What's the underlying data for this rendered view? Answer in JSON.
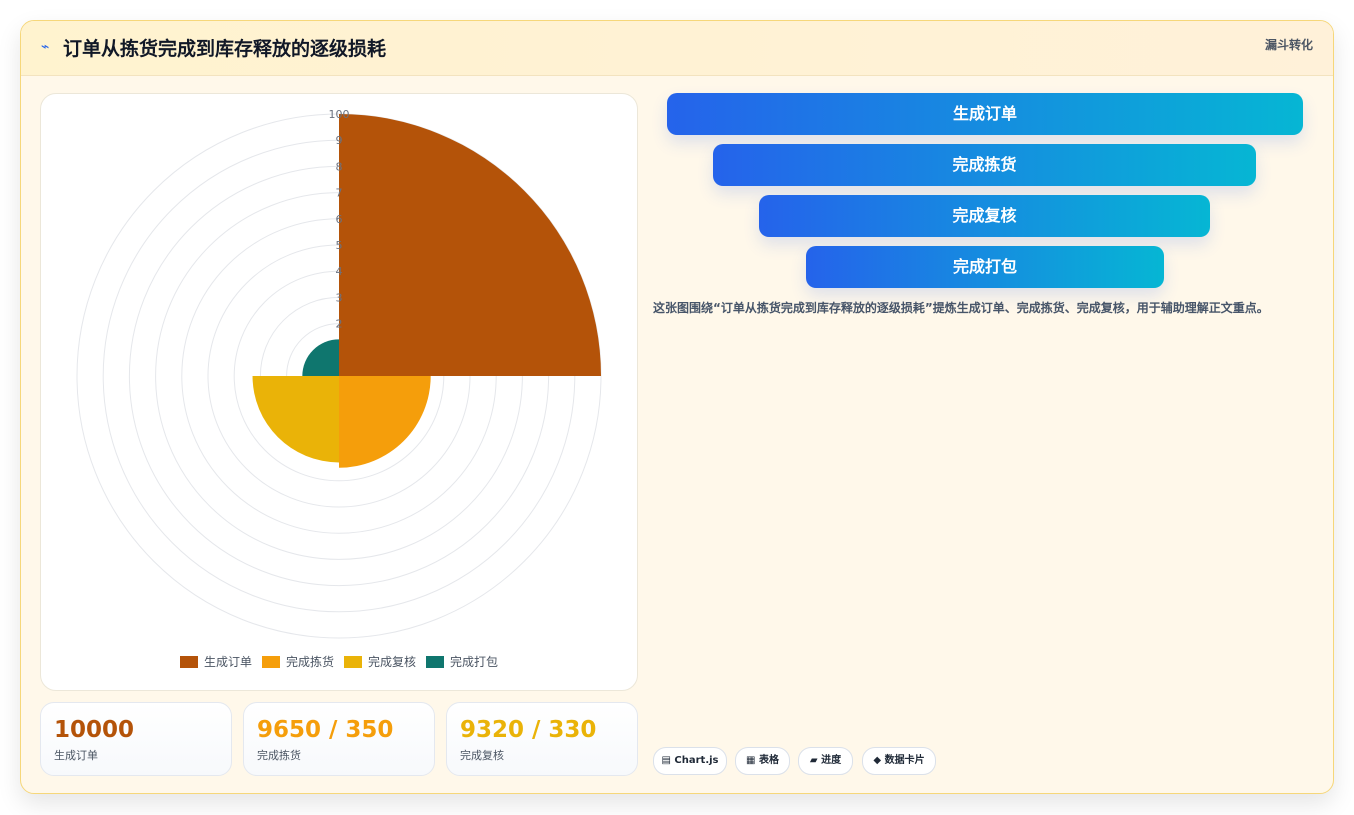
{
  "header": {
    "icon": "⌁",
    "title": "订单从拣货完成到库存释放的逐级损耗",
    "tag": "漏斗转化"
  },
  "chart_data": {
    "type": "polarArea",
    "title": "",
    "categories": [
      "生成订单",
      "完成拣货",
      "完成复核",
      "完成打包"
    ],
    "values": [
      100,
      35,
      33,
      14
    ],
    "colors": [
      "#b45309",
      "#f59e0b",
      "#eab308",
      "#0f766e"
    ],
    "r_range": [
      0,
      100
    ],
    "r_ticks": [
      "100",
      "9",
      "8",
      "7",
      "6",
      "5",
      "4",
      "3",
      "2"
    ],
    "legend_position": "bottom",
    "grid": true
  },
  "stats": [
    {
      "value": "10000",
      "label": "生成订单",
      "color": "#b45309"
    },
    {
      "value": "9650 / 350",
      "label": "完成拣货",
      "color": "#f59e0b"
    },
    {
      "value": "9320 / 330",
      "label": "完成复核",
      "color": "#eab308"
    }
  ],
  "funnel": [
    {
      "label": "生成订单"
    },
    {
      "label": "完成拣货"
    },
    {
      "label": "完成复核"
    },
    {
      "label": "完成打包"
    }
  ],
  "description": "这张图围绕“订单从拣货完成到库存释放的逐级损耗”提炼生成订单、完成拣货、完成复核，用于辅助理解正文重点。",
  "chips": [
    {
      "icon": "▤",
      "label": "Chart.js"
    },
    {
      "icon": "▦",
      "label": "表格"
    },
    {
      "icon": "▰",
      "label": "进度"
    },
    {
      "icon": "◆",
      "label": "数据卡片"
    }
  ]
}
